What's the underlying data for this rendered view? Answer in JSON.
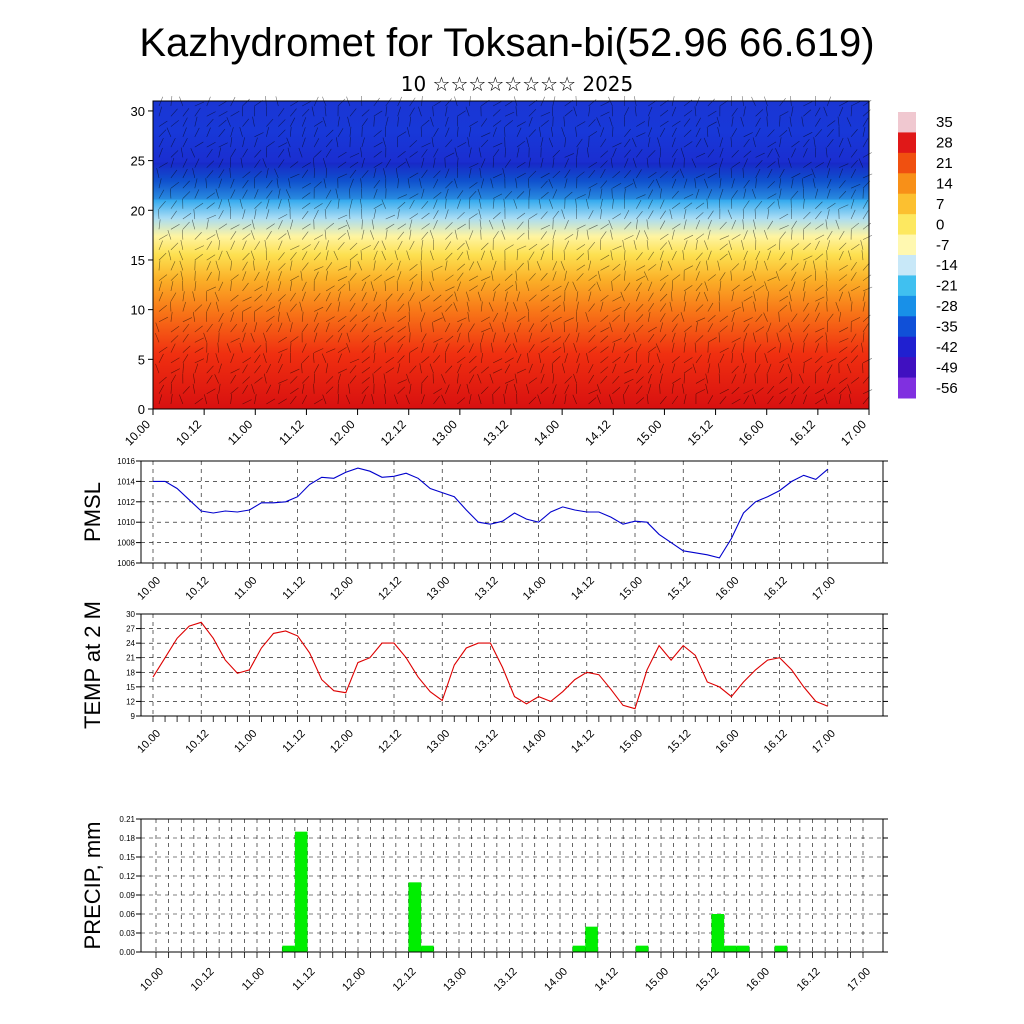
{
  "title": "Kazhydromet for Toksan-bi(52.96 66.619)",
  "subtitle": "10 ☆☆☆☆☆☆☆☆ 2025",
  "colorbar": {
    "labels": [
      "35",
      "28",
      "21",
      "14",
      "7",
      "0",
      "-7",
      "-14",
      "-21",
      "-28",
      "-35",
      "-42",
      "-49",
      "-56"
    ],
    "colors": [
      "#f0c8d0",
      "#e01818",
      "#f05010",
      "#f89018",
      "#fcc030",
      "#fde860",
      "#fff8b0",
      "#c8e8f8",
      "#40c0f0",
      "#1890e8",
      "#1050d8",
      "#2020d0",
      "#4010c0",
      "#8030e0"
    ]
  },
  "chart_data": [
    {
      "type": "heatmap",
      "name": "vertical-section",
      "x_ticks": [
        "10.00",
        "10.12",
        "11.00",
        "11.12",
        "12.00",
        "12.12",
        "13.00",
        "13.12",
        "14.00",
        "14.12",
        "15.00",
        "15.12",
        "16.00",
        "16.12",
        "17.00"
      ],
      "y_ticks": [
        "0",
        "5",
        "10",
        "15",
        "20",
        "25",
        "30"
      ],
      "ylim": [
        0,
        31
      ],
      "description_colors": {
        "low_levels": "red (warm)",
        "mid_levels": "yellow",
        "upper_levels": "blue (cold)"
      }
    },
    {
      "type": "line",
      "name": "pmsl",
      "ylabel": "PMSL",
      "ylim": [
        1006,
        1016
      ],
      "y_ticks": [
        "1006",
        "1008",
        "1010",
        "1012",
        "1014",
        "1016"
      ],
      "x_ticks": [
        "10.00",
        "10.12",
        "11.00",
        "11.12",
        "12.00",
        "12.12",
        "13.00",
        "13.12",
        "14.00",
        "14.12",
        "15.00",
        "15.12",
        "16.00",
        "16.12",
        "17.00"
      ],
      "color": "#0000cc",
      "values": [
        1014.0,
        1014.0,
        1013.3,
        1012.2,
        1011.1,
        1010.9,
        1011.1,
        1011.0,
        1011.2,
        1011.9,
        1011.9,
        1012.0,
        1012.5,
        1013.7,
        1014.4,
        1014.3,
        1014.9,
        1015.3,
        1015.0,
        1014.4,
        1014.5,
        1014.8,
        1014.3,
        1013.3,
        1012.9,
        1012.5,
        1011.2,
        1010.0,
        1009.8,
        1010.1,
        1010.9,
        1010.3,
        1010.0,
        1011.0,
        1011.5,
        1011.2,
        1011.0,
        1011.0,
        1010.5,
        1009.8,
        1010.1,
        1010.0,
        1008.8,
        1008.0,
        1007.2,
        1007.0,
        1006.8,
        1006.5,
        1008.4,
        1010.9,
        1012.0,
        1012.5,
        1013.1,
        1014.0,
        1014.6,
        1014.2,
        1015.2
      ]
    },
    {
      "type": "line",
      "name": "temp2m",
      "ylabel": "TEMP at 2 M",
      "ylim": [
        9,
        30
      ],
      "y_ticks": [
        "9",
        "12",
        "15",
        "18",
        "21",
        "24",
        "27",
        "30"
      ],
      "x_ticks": [
        "10.00",
        "10.12",
        "11.00",
        "11.12",
        "12.00",
        "12.12",
        "13.00",
        "13.12",
        "14.00",
        "14.12",
        "15.00",
        "15.12",
        "16.00",
        "16.12",
        "17.00"
      ],
      "color": "#dd0000",
      "values": [
        17.0,
        21.0,
        25.0,
        27.5,
        28.3,
        25.0,
        20.5,
        17.8,
        18.5,
        23.0,
        26.0,
        26.5,
        25.5,
        22.0,
        16.5,
        14.2,
        13.8,
        20.0,
        21.0,
        24.0,
        24.0,
        21.0,
        17.0,
        14.0,
        12.2,
        19.5,
        23.0,
        24.0,
        24.0,
        19.0,
        13.0,
        11.5,
        13.0,
        12.0,
        14.0,
        16.5,
        18.0,
        17.5,
        14.5,
        11.2,
        10.5,
        18.5,
        23.5,
        20.5,
        23.5,
        21.5,
        16.0,
        15.0,
        13.0,
        16.0,
        18.5,
        20.5,
        21.0,
        18.5,
        15.0,
        12.0,
        11.0
      ]
    },
    {
      "type": "bar",
      "name": "precip",
      "ylabel": "PRECIP, mm",
      "ylim": [
        0,
        0.21
      ],
      "y_ticks": [
        "0.00",
        "0.03",
        "0.06",
        "0.09",
        "0.12",
        "0.15",
        "0.18",
        "0.21"
      ],
      "x_ticks": [
        "10.00",
        "10.12",
        "11.00",
        "11.12",
        "12.00",
        "12.12",
        "13.00",
        "13.12",
        "14.00",
        "14.12",
        "15.00",
        "15.12",
        "16.00",
        "16.12",
        "17.00"
      ],
      "color": "#00ee00",
      "bars": [
        {
          "x": 10.5,
          "value": 0.01
        },
        {
          "x": 11.5,
          "value": 0.19
        },
        {
          "x": 20.5,
          "value": 0.11
        },
        {
          "x": 21.5,
          "value": 0.01
        },
        {
          "x": 33.5,
          "value": 0.01
        },
        {
          "x": 34.5,
          "value": 0.04
        },
        {
          "x": 38.5,
          "value": 0.01
        },
        {
          "x": 44.5,
          "value": 0.06
        },
        {
          "x": 45.5,
          "value": 0.01
        },
        {
          "x": 46.5,
          "value": 0.01
        },
        {
          "x": 49.5,
          "value": 0.01
        }
      ]
    }
  ]
}
